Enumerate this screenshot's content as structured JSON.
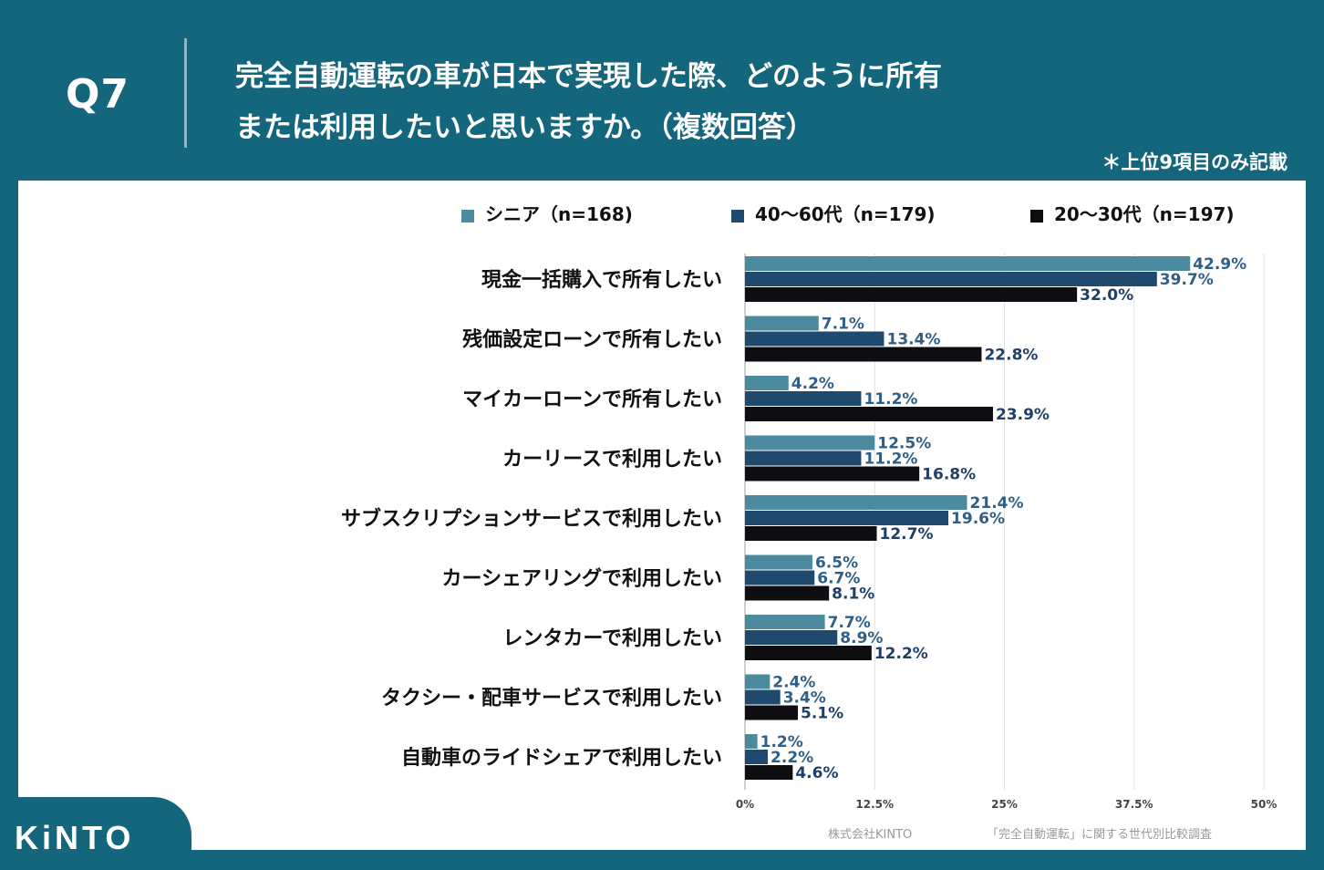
{
  "header": {
    "question": "Q7",
    "title_line1": "完全自動運転の車が日本で実現した際、どのように所有",
    "title_line2": "または利用したいと思いますか。（複数回答）",
    "note": "＊上位9項目のみ記載"
  },
  "footer": {
    "logo": "KiNTO",
    "company": "株式会社KINTO",
    "survey": "「完全自動運転」に関する世代別比較調査"
  },
  "chart_data": {
    "type": "bar",
    "orientation": "horizontal",
    "categories": [
      "現金一括購入で所有したい",
      "残価設定ローンで所有したい",
      "マイカーローンで所有したい",
      "カーリースで利用したい",
      "サブスクリプションサービスで利用したい",
      "カーシェアリングで利用したい",
      "レンタカーで利用したい",
      "タクシー・配車サービスで利用したい",
      "自動車のライドシェアで利用したい"
    ],
    "series": [
      {
        "name": "シニア（n=168)",
        "color": "#4b8a9f",
        "values": [
          42.9,
          7.1,
          4.2,
          12.5,
          21.4,
          6.5,
          7.7,
          2.4,
          1.2
        ],
        "labels": [
          "42.9%",
          "7.1%",
          "4.2%",
          "12.5%",
          "21.4%",
          "6.5%",
          "7.7%",
          "2.4%",
          "1.2%"
        ]
      },
      {
        "name": "40～60代（n=179)",
        "color": "#1f4a6e",
        "values": [
          39.7,
          13.4,
          11.2,
          11.2,
          19.6,
          6.7,
          8.9,
          3.4,
          2.2
        ],
        "labels": [
          "39.7%",
          "13.4%",
          "11.2%",
          "11.2%",
          "19.6%",
          "6.7%",
          "8.9%",
          "3.4%",
          "2.2%"
        ]
      },
      {
        "name": "20～30代（n=197)",
        "color": "#0d0d12",
        "values": [
          32.0,
          22.8,
          23.9,
          16.8,
          12.7,
          8.1,
          12.2,
          5.1,
          4.6
        ],
        "labels": [
          "32.0%",
          "22.8%",
          "23.9%",
          "16.8%",
          "12.7%",
          "8.1%",
          "12.2%",
          "5.1%",
          "4.6%"
        ]
      }
    ],
    "xlim": [
      0,
      50
    ],
    "x_ticks": [
      0,
      12.5,
      25,
      37.5,
      50
    ],
    "x_tick_labels": [
      "0%",
      "12.5%",
      "25%",
      "37.5%",
      "50%"
    ],
    "grid": true,
    "legend_position": "top-right"
  }
}
